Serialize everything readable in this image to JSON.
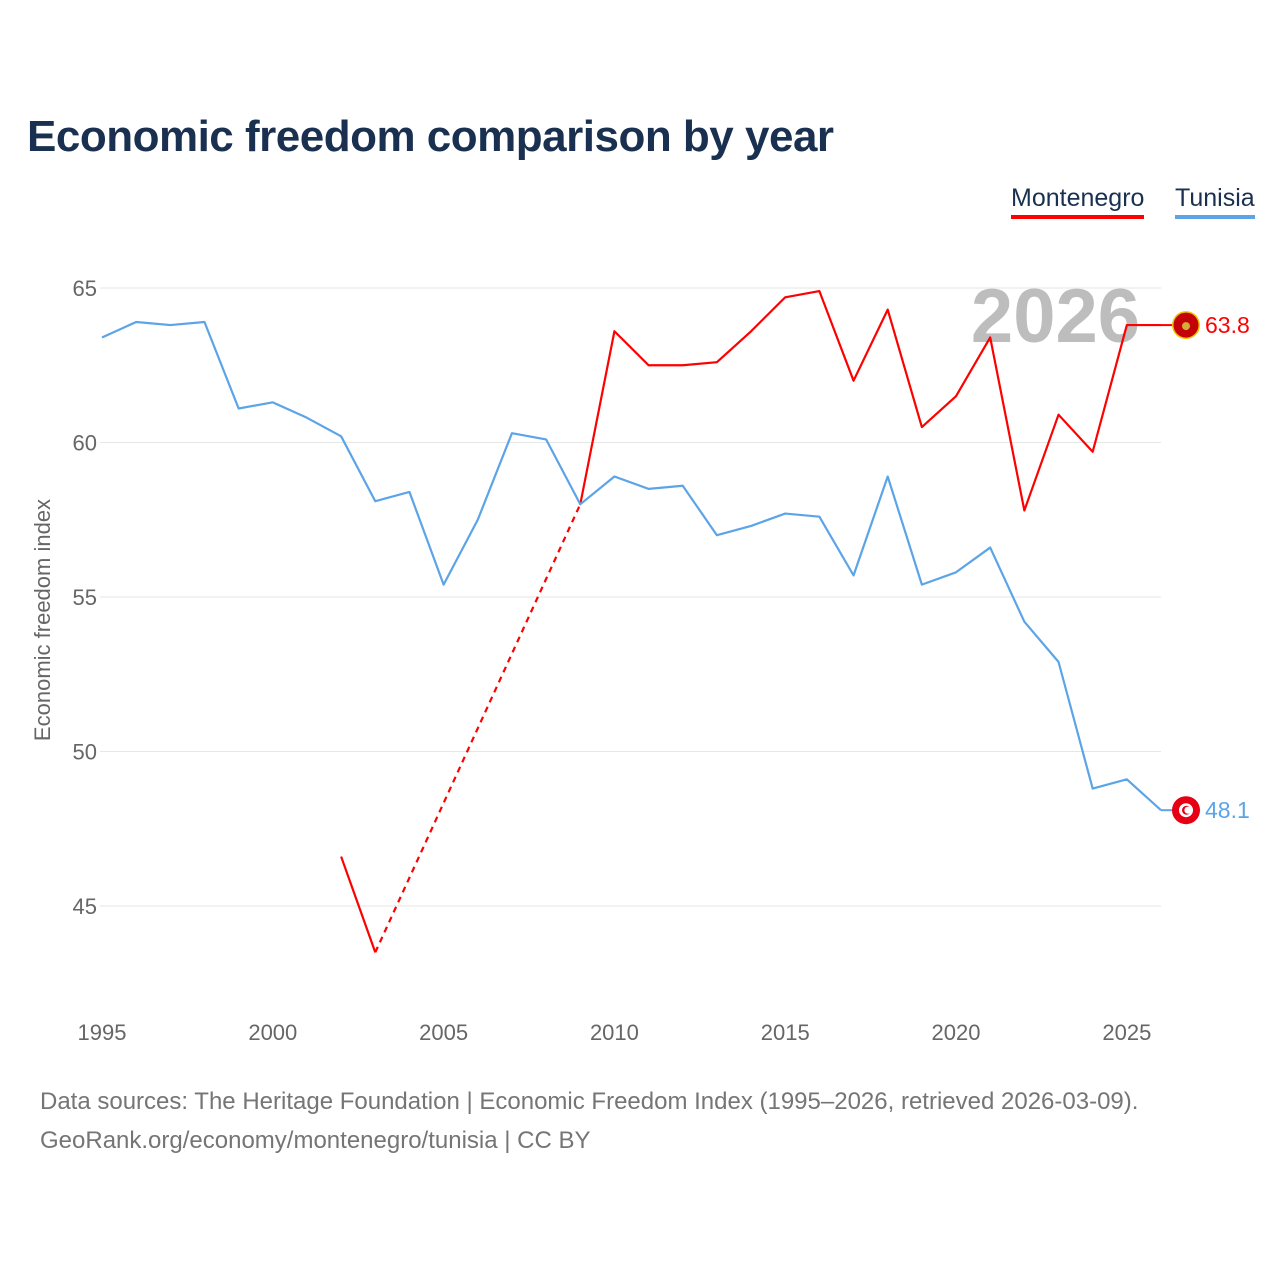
{
  "chart_data": {
    "type": "line",
    "title": "Economic freedom comparison by year",
    "xlabel": "",
    "ylabel": "Economic freedom index",
    "xlim": [
      1995,
      2026
    ],
    "ylim": [
      42,
      67
    ],
    "x_ticks": [
      1995,
      2000,
      2005,
      2010,
      2015,
      2020,
      2025
    ],
    "y_ticks": [
      45,
      50,
      55,
      60,
      65
    ],
    "grid": true,
    "legend_position": "top-right",
    "year_watermark": "2026",
    "series": [
      {
        "name": "Montenegro",
        "color": "#ff0000",
        "end_label": "63.8",
        "flag_icon": "montenegro-flag-icon",
        "x": [
          2002,
          2003,
          2009,
          2010,
          2011,
          2012,
          2013,
          2014,
          2015,
          2016,
          2017,
          2018,
          2019,
          2020,
          2021,
          2022,
          2023,
          2024,
          2025,
          2026
        ],
        "values": [
          46.6,
          43.5,
          58.0,
          63.6,
          62.5,
          62.5,
          62.6,
          63.6,
          64.7,
          64.9,
          62.0,
          64.3,
          60.5,
          61.5,
          63.4,
          57.8,
          60.9,
          59.7,
          63.8,
          63.8
        ],
        "gap_dashed_between": [
          2003,
          2009
        ]
      },
      {
        "name": "Tunisia",
        "color": "#5ba4e8",
        "end_label": "48.1",
        "flag_icon": "tunisia-flag-icon",
        "x": [
          1995,
          1996,
          1997,
          1998,
          1999,
          2000,
          2001,
          2002,
          2003,
          2004,
          2005,
          2006,
          2007,
          2008,
          2009,
          2010,
          2011,
          2012,
          2013,
          2014,
          2015,
          2016,
          2017,
          2018,
          2019,
          2020,
          2021,
          2022,
          2023,
          2024,
          2025,
          2026
        ],
        "values": [
          63.4,
          63.9,
          63.8,
          63.9,
          61.1,
          61.3,
          60.8,
          60.2,
          58.1,
          58.4,
          55.4,
          57.5,
          60.3,
          60.1,
          58.0,
          58.9,
          58.5,
          58.6,
          57.0,
          57.3,
          57.7,
          57.6,
          55.7,
          58.9,
          55.4,
          55.8,
          56.6,
          54.2,
          52.9,
          48.8,
          49.1,
          48.1
        ]
      }
    ]
  },
  "footer": {
    "source_line": "Data sources: The Heritage Foundation | Economic Freedom Index (1995–2026, retrieved 2026-03-09).",
    "credit_line": "GeoRank.org/economy/montenegro/tunisia | CC BY"
  }
}
